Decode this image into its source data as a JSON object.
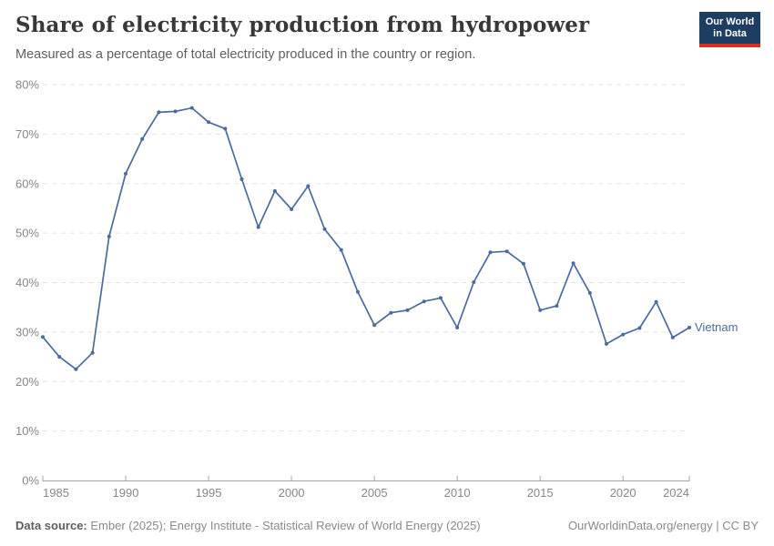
{
  "header": {
    "title": "Share of electricity production from hydropower",
    "subtitle": "Measured as a percentage of total electricity produced in the country or region.",
    "logo": {
      "line1": "Our World",
      "line2": "in Data"
    }
  },
  "chart_data": {
    "type": "line",
    "title": "Share of electricity production from hydropower",
    "xlabel": "",
    "ylabel": "",
    "xlim": [
      1985,
      2024
    ],
    "ylim": [
      0,
      80
    ],
    "x_ticks": [
      1985,
      1990,
      1995,
      2000,
      2005,
      2010,
      2015,
      2020,
      2024
    ],
    "y_ticks": [
      0,
      10,
      20,
      30,
      40,
      50,
      60,
      70,
      80
    ],
    "y_tick_suffix": "%",
    "grid": "horizontal-dashed",
    "legend_position": "end-of-line-label",
    "series": [
      {
        "name": "Vietnam",
        "color": "#4c6a9c",
        "x": [
          1985,
          1986,
          1987,
          1988,
          1989,
          1990,
          1991,
          1992,
          1993,
          1994,
          1995,
          1996,
          1997,
          1998,
          1999,
          2000,
          2001,
          2002,
          2003,
          2004,
          2005,
          2006,
          2007,
          2008,
          2009,
          2010,
          2011,
          2012,
          2013,
          2014,
          2015,
          2016,
          2017,
          2018,
          2019,
          2020,
          2021,
          2022,
          2023,
          2024
        ],
        "values": [
          29.0,
          25.0,
          22.5,
          25.8,
          49.3,
          62.0,
          69.0,
          74.4,
          74.6,
          75.3,
          72.4,
          71.1,
          60.9,
          51.2,
          58.5,
          54.8,
          59.5,
          50.8,
          46.6,
          38.1,
          31.4,
          33.9,
          34.4,
          36.2,
          36.9,
          30.9,
          40.1,
          46.1,
          46.3,
          43.8,
          34.4,
          35.3,
          43.9,
          37.9,
          27.6,
          29.5,
          30.8,
          36.1,
          28.9,
          30.9
        ]
      }
    ],
    "colors": {
      "gridline": "#e2e2e2",
      "axis": "#a6a6a6",
      "tick_label": "#878787"
    }
  },
  "footer": {
    "source_label": "Data source:",
    "source_text": " Ember (2025); Energy Institute - Statistical Review of World Energy (2025)",
    "rights": "OurWorldinData.org/energy | CC BY"
  }
}
